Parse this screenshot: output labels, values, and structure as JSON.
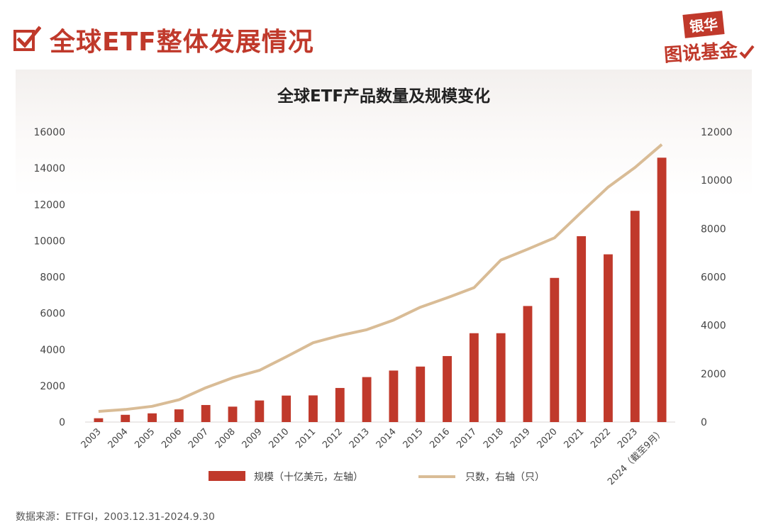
{
  "header": {
    "title": "全球ETF整体发展情况",
    "logo_top": "银华",
    "logo_bottom": "图说基金"
  },
  "source": "数据来源：ETFGI，2003.12.31-2024.9.30",
  "colors": {
    "accent": "#c0392b",
    "line": "#d9bc96"
  },
  "chart_data": {
    "type": "bar+line",
    "title": "全球ETF产品数量及规模变化",
    "categories": [
      "2003",
      "2004",
      "2005",
      "2006",
      "2007",
      "2008",
      "2009",
      "2010",
      "2011",
      "2012",
      "2013",
      "2014",
      "2015",
      "2016",
      "2017",
      "2018",
      "2019",
      "2020",
      "2021",
      "2022",
      "2023",
      "2024（截至9月）"
    ],
    "series": [
      {
        "name": "规模（十亿美元，左轴）",
        "type": "bar",
        "axis": "left",
        "values": [
          210,
          400,
          480,
          700,
          940,
          850,
          1190,
          1460,
          1470,
          1880,
          2480,
          2840,
          3060,
          3640,
          4900,
          4900,
          6400,
          7950,
          10250,
          9250,
          11650,
          14580
        ]
      },
      {
        "name": "只数，右轴（只）",
        "type": "line",
        "axis": "right",
        "values": [
          440,
          520,
          650,
          920,
          1420,
          1830,
          2140,
          2700,
          3280,
          3580,
          3820,
          4220,
          4750,
          5140,
          5560,
          6700,
          7150,
          7620,
          8680,
          9720,
          10530,
          11480
        ]
      }
    ],
    "left_axis": {
      "min": 0,
      "max": 16000,
      "ticks": [
        "0",
        "2000",
        "4000",
        "6000",
        "8000",
        "10000",
        "12000",
        "14000",
        "16000"
      ]
    },
    "right_axis": {
      "min": 0,
      "max": 12000,
      "ticks": [
        "0",
        "2000",
        "4000",
        "6000",
        "8000",
        "10000",
        "12000"
      ]
    },
    "legend_position": "bottom-center",
    "grid": false
  }
}
